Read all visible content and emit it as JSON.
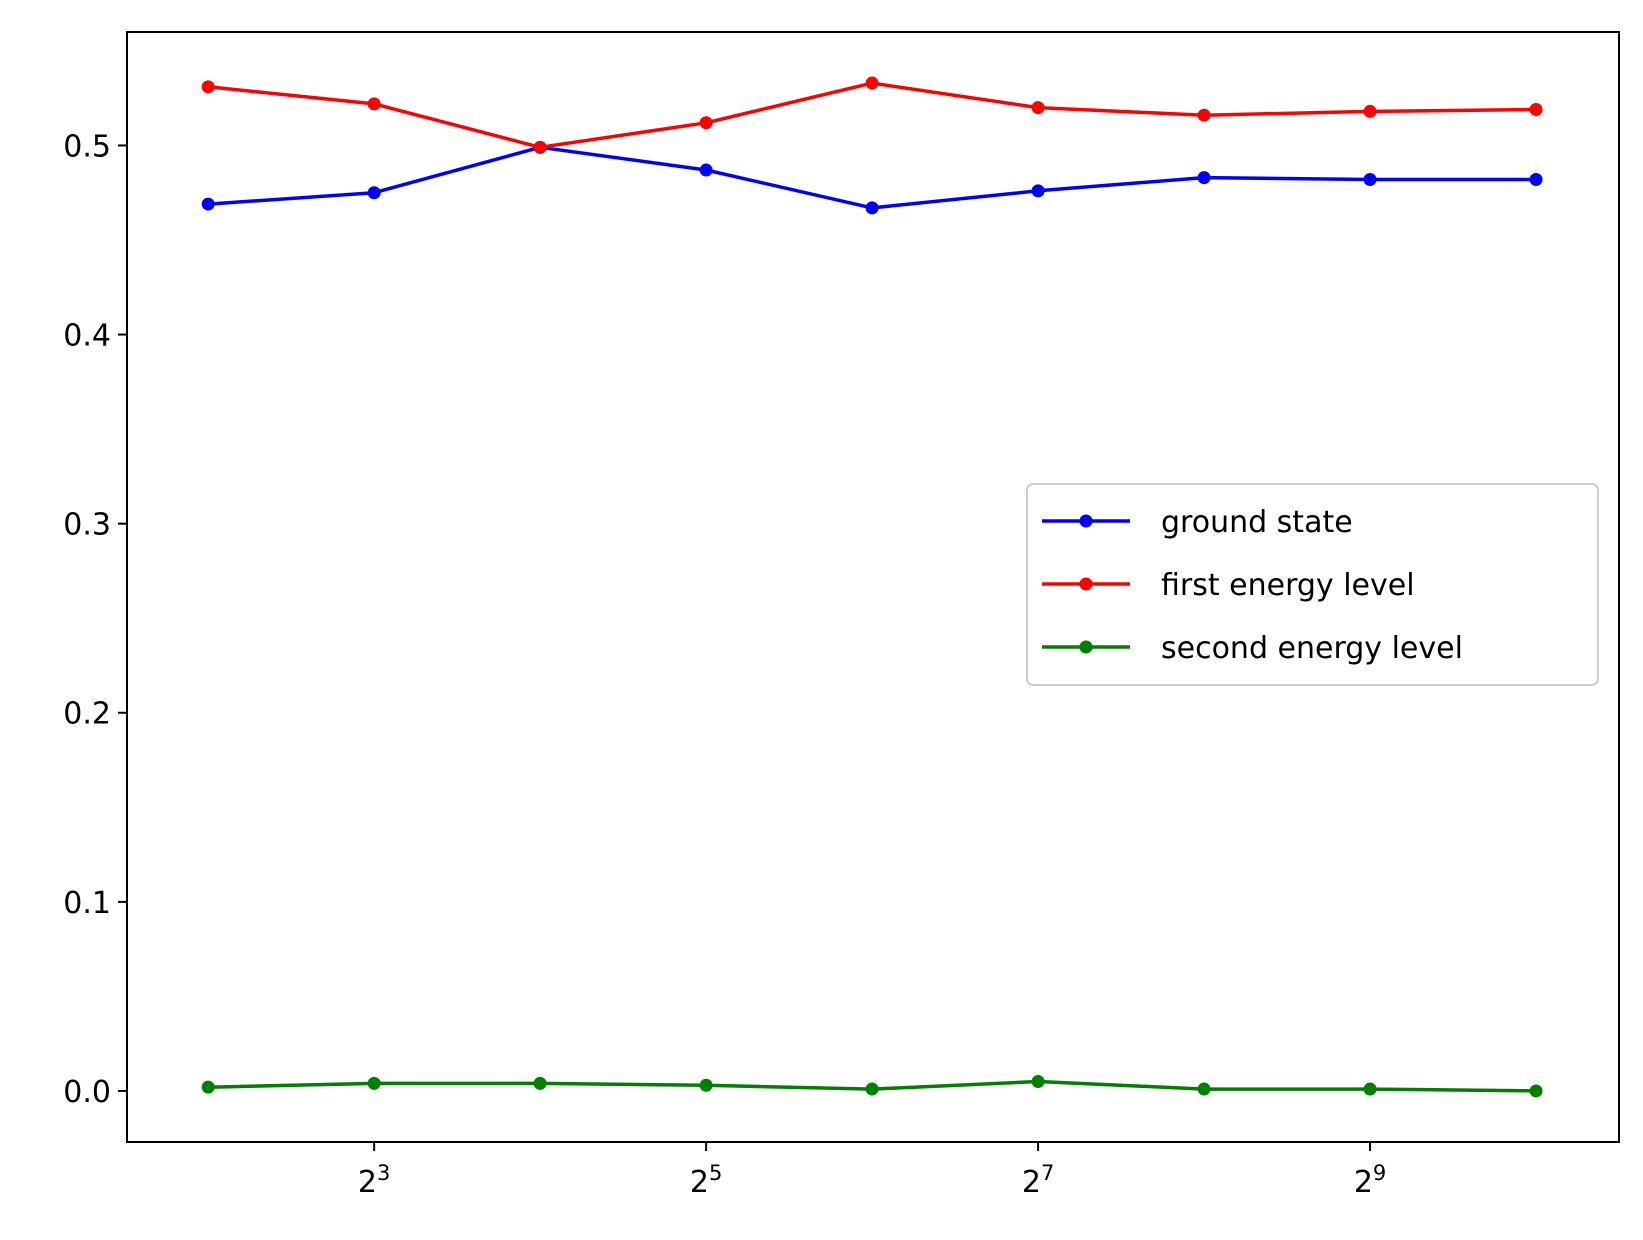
{
  "chart_data": {
    "type": "line",
    "title": "",
    "xlabel": "",
    "ylabel": "",
    "x_scale": "log2",
    "x": [
      4,
      8,
      16,
      32,
      64,
      128,
      256,
      512,
      1024
    ],
    "xlim": [
      2.85,
      1448
    ],
    "ylim": [
      -0.027,
      0.56
    ],
    "y_ticks": [
      {
        "value": 0.0,
        "label": "0.0"
      },
      {
        "value": 0.1,
        "label": "0.1"
      },
      {
        "value": 0.2,
        "label": "0.2"
      },
      {
        "value": 0.3,
        "label": "0.3"
      },
      {
        "value": 0.4,
        "label": "0.4"
      },
      {
        "value": 0.5,
        "label": "0.5"
      }
    ],
    "x_ticks": [
      {
        "value": 8,
        "base": "2",
        "exp": "3"
      },
      {
        "value": 32,
        "base": "2",
        "exp": "5"
      },
      {
        "value": 128,
        "base": "2",
        "exp": "7"
      },
      {
        "value": 512,
        "base": "2",
        "exp": "9"
      }
    ],
    "grid": false,
    "legend_position": "center-right",
    "series": [
      {
        "name": "ground state",
        "color": "#0000ff",
        "values": [
          0.469,
          0.475,
          0.499,
          0.487,
          0.467,
          0.476,
          0.483,
          0.482,
          0.482
        ]
      },
      {
        "name": "first energy level",
        "color": "#ff0000",
        "values": [
          0.531,
          0.522,
          0.499,
          0.512,
          0.533,
          0.52,
          0.516,
          0.518,
          0.519
        ]
      },
      {
        "name": "second energy level",
        "color": "#008000",
        "values": [
          0.002,
          0.004,
          0.004,
          0.003,
          0.001,
          0.005,
          0.001,
          0.001,
          0.0
        ]
      }
    ]
  }
}
